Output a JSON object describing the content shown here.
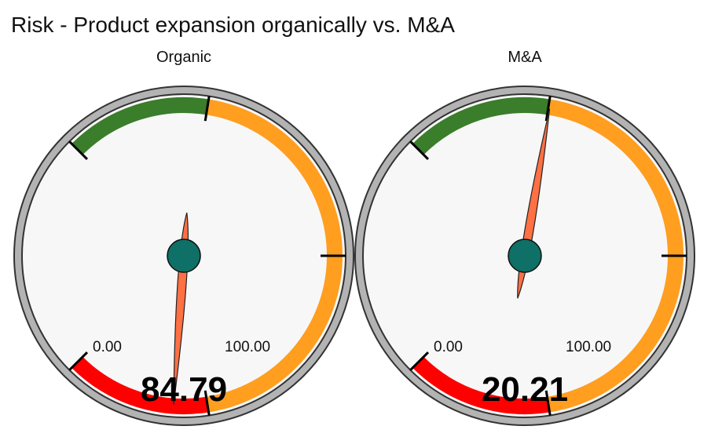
{
  "title": "Risk - Product expansion organically vs. M&A",
  "chart_data": [
    {
      "type": "gauge",
      "title": "Organic",
      "value": 84.79,
      "value_label": "84.79",
      "min": 0,
      "max": 100,
      "min_label": "0.00",
      "max_label": "100.00",
      "bands": [
        {
          "from": 0,
          "to": 20,
          "color": "#3a7d2a"
        },
        {
          "from": 20,
          "to": 80,
          "color": "#ff9e1f"
        },
        {
          "from": 80,
          "to": 100,
          "color": "#ff0000"
        }
      ]
    },
    {
      "type": "gauge",
      "title": "M&A",
      "value": 20.21,
      "value_label": "20.21",
      "min": 0,
      "max": 100,
      "min_label": "0.00",
      "max_label": "100.00",
      "bands": [
        {
          "from": 0,
          "to": 20,
          "color": "#3a7d2a"
        },
        {
          "from": 20,
          "to": 80,
          "color": "#ff9e1f"
        },
        {
          "from": 80,
          "to": 100,
          "color": "#ff0000"
        }
      ]
    }
  ],
  "colors": {
    "rim": "#b3b3b3",
    "face": "#f7f7f7",
    "needle": "#ff7043",
    "hub": "#0e7066"
  }
}
